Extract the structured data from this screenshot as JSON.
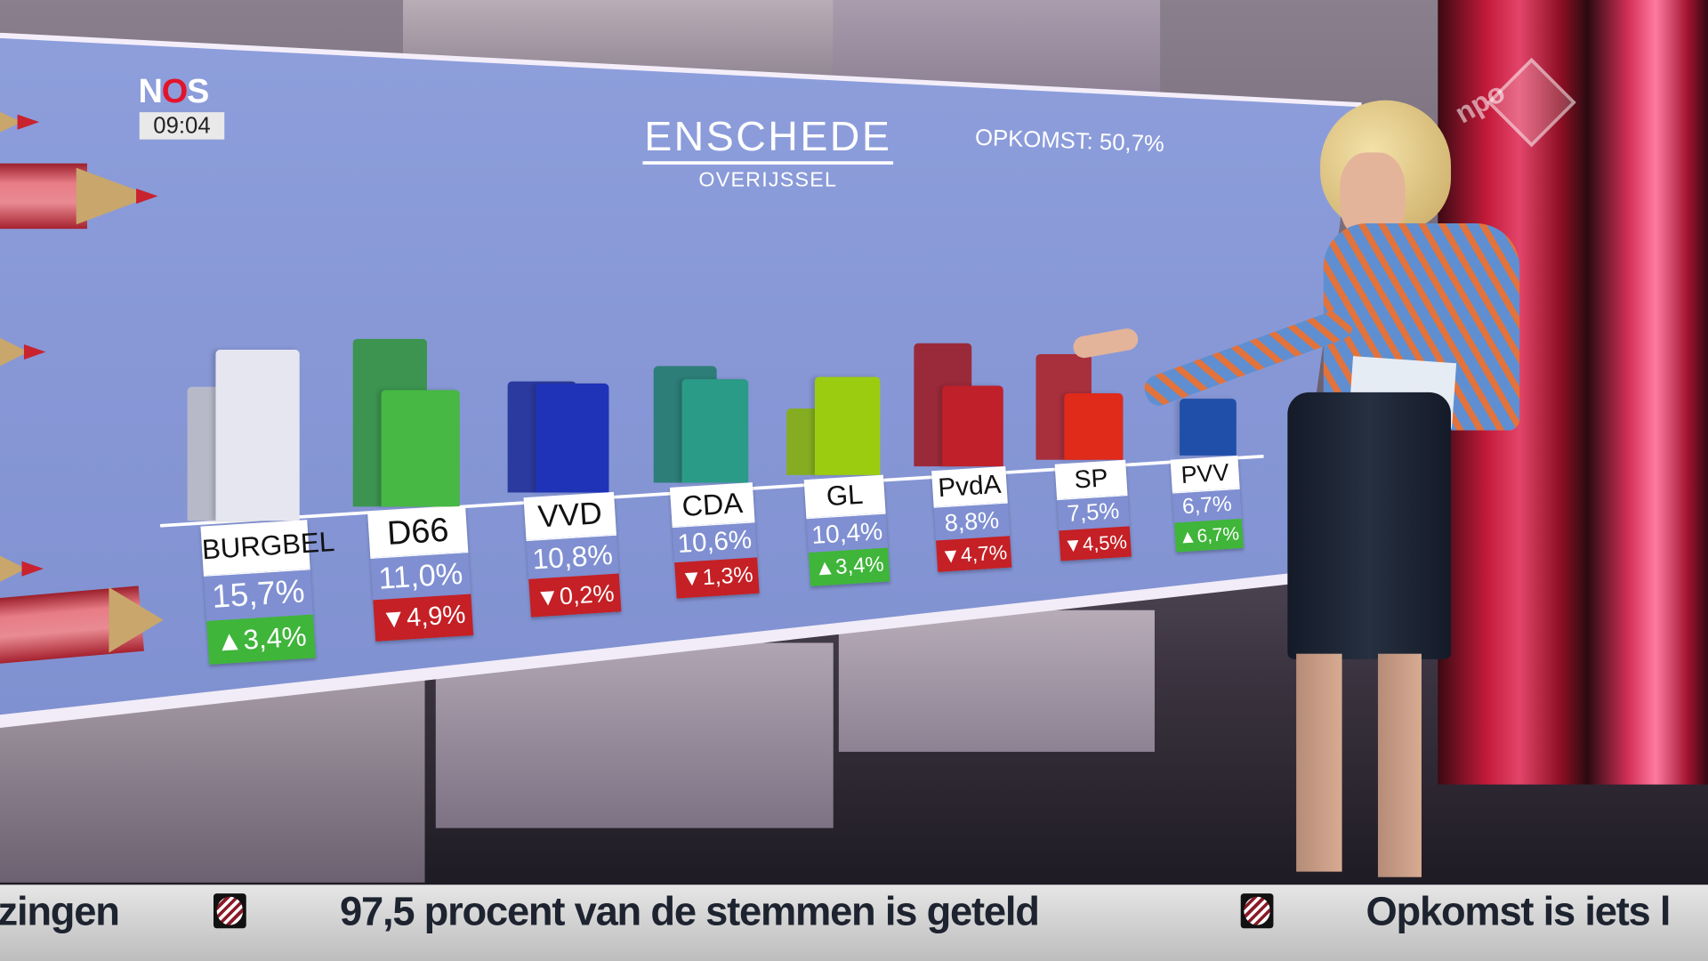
{
  "broadcaster": {
    "logo_text": "NOS",
    "clock": "09:04",
    "channel_logo": "npo 1"
  },
  "graphic": {
    "title": "ENSCHEDE",
    "subtitle": "OVERIJSSEL",
    "turnout": "OPKOMST: 50,7%"
  },
  "colors": {
    "increase": "#3fb53a",
    "decrease": "#c42025",
    "pct_band": "#7f8fd1"
  },
  "chart_data": {
    "type": "bar",
    "title": "ENSCHEDE",
    "subtitle": "OVERIJSSEL",
    "categories": [
      "BURGBEL",
      "D66",
      "VVD",
      "CDA",
      "GL",
      "PvdA",
      "SP",
      "PVV"
    ],
    "series": [
      {
        "name": "previous",
        "values": [
          12.3,
          15.9,
          11.0,
          11.9,
          7.0,
          13.5,
          12.0,
          0.0
        ]
      },
      {
        "name": "current",
        "values": [
          15.7,
          11.0,
          10.8,
          10.6,
          10.4,
          8.8,
          7.5,
          6.7
        ]
      }
    ],
    "labels": [
      {
        "party": "BURGBEL",
        "pct": "15,7%",
        "change": "3,4%",
        "dir": "up",
        "color": "#e6e6f0",
        "old_color": "#b7b9c9"
      },
      {
        "party": "D66",
        "pct": "11,0%",
        "change": "4,9%",
        "dir": "down",
        "color": "#46b843",
        "old_color": "#3c9450"
      },
      {
        "party": "VVD",
        "pct": "10,8%",
        "change": "0,2%",
        "dir": "down",
        "color": "#1f33b8",
        "old_color": "#2b3a9e"
      },
      {
        "party": "CDA",
        "pct": "10,6%",
        "change": "1,3%",
        "dir": "down",
        "color": "#2a9b86",
        "old_color": "#2d7e78"
      },
      {
        "party": "GL",
        "pct": "10,4%",
        "change": "3,4%",
        "dir": "up",
        "color": "#9ccc10",
        "old_color": "#86ad22"
      },
      {
        "party": "PvdA",
        "pct": "8,8%",
        "change": "4,7%",
        "dir": "down",
        "color": "#c0202a",
        "old_color": "#9a2a3a"
      },
      {
        "party": "SP",
        "pct": "7,5%",
        "change": "4,5%",
        "dir": "down",
        "color": "#e02a1a",
        "old_color": "#a8303c"
      },
      {
        "party": "PVV",
        "pct": "6,7%",
        "change": "6,7%",
        "dir": "up",
        "color": "#1f4fa8",
        "old_color": "#1f4fa8"
      }
    ],
    "ylabel": "",
    "xlabel": ""
  },
  "ticker": {
    "items": [
      "zingen",
      "97,5 procent van de stemmen is geteld",
      "Opkomst is iets l"
    ]
  }
}
